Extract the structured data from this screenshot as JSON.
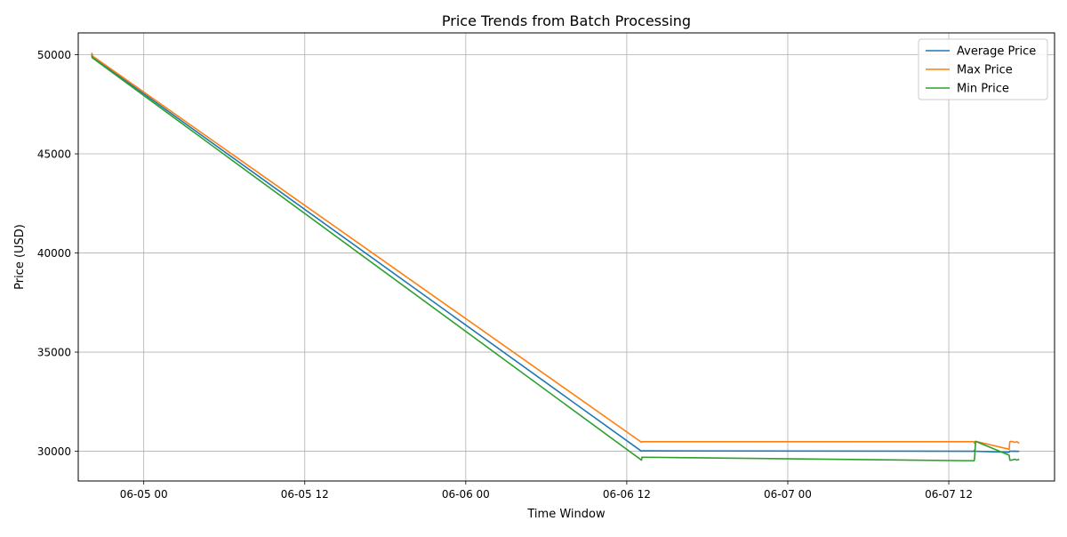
{
  "chart_data": {
    "type": "line",
    "title": "Price Trends from Batch Processing",
    "xlabel": "Time Window",
    "ylabel": "Price (USD)",
    "grid": true,
    "legend_position": "top-right",
    "x_range": [
      "2024-06-04 19:07",
      "2024-06-07 19:53"
    ],
    "ylim": [
      28500,
      51100
    ],
    "x_ticks": [
      {
        "t": "2024-06-05 00:00",
        "label": "06-05 00"
      },
      {
        "t": "2024-06-05 12:00",
        "label": "06-05 12"
      },
      {
        "t": "2024-06-06 00:00",
        "label": "06-06 00"
      },
      {
        "t": "2024-06-06 12:00",
        "label": "06-06 12"
      },
      {
        "t": "2024-06-07 00:00",
        "label": "06-07 00"
      },
      {
        "t": "2024-06-07 12:00",
        "label": "06-07 12"
      }
    ],
    "y_ticks": [
      30000,
      35000,
      40000,
      45000,
      50000
    ],
    "series": [
      {
        "name": "Average Price",
        "color": "#1f77b4",
        "points": [
          [
            "2024-06-04 20:08",
            50050
          ],
          [
            "2024-06-04 20:09",
            49900
          ],
          [
            "2024-06-06 13:06",
            30000
          ],
          [
            "2024-06-06 13:08",
            30020
          ],
          [
            "2024-06-07 13:53",
            30000
          ],
          [
            "2024-06-07 13:55",
            30050
          ],
          [
            "2024-06-07 14:00",
            30000
          ],
          [
            "2024-06-07 16:30",
            29950
          ],
          [
            "2024-06-07 16:33",
            30010
          ],
          [
            "2024-06-07 16:40",
            30000
          ],
          [
            "2024-06-07 16:55",
            30005
          ],
          [
            "2024-06-07 17:05",
            29995
          ],
          [
            "2024-06-07 17:15",
            30000
          ]
        ]
      },
      {
        "name": "Max Price",
        "color": "#ff7f0e",
        "points": [
          [
            "2024-06-04 20:08",
            50100
          ],
          [
            "2024-06-04 20:09",
            49950
          ],
          [
            "2024-06-06 13:06",
            30450
          ],
          [
            "2024-06-06 13:08",
            30480
          ],
          [
            "2024-06-07 13:53",
            30480
          ],
          [
            "2024-06-07 13:55",
            30400
          ],
          [
            "2024-06-07 14:00",
            30500
          ],
          [
            "2024-06-07 16:30",
            30100
          ],
          [
            "2024-06-07 16:33",
            30480
          ],
          [
            "2024-06-07 16:40",
            30500
          ],
          [
            "2024-06-07 16:55",
            30450
          ],
          [
            "2024-06-07 17:05",
            30480
          ],
          [
            "2024-06-07 17:15",
            30400
          ]
        ]
      },
      {
        "name": "Min Price",
        "color": "#2ca02c",
        "points": [
          [
            "2024-06-04 20:08",
            50000
          ],
          [
            "2024-06-04 20:09",
            49850
          ],
          [
            "2024-06-06 13:06",
            29550
          ],
          [
            "2024-06-06 13:08",
            29700
          ],
          [
            "2024-06-07 13:53",
            29520
          ],
          [
            "2024-06-07 13:55",
            29600
          ],
          [
            "2024-06-07 14:00",
            30500
          ],
          [
            "2024-06-07 16:30",
            29800
          ],
          [
            "2024-06-07 16:33",
            29550
          ],
          [
            "2024-06-07 16:40",
            29550
          ],
          [
            "2024-06-07 16:55",
            29600
          ],
          [
            "2024-06-07 17:05",
            29550
          ],
          [
            "2024-06-07 17:15",
            29600
          ]
        ]
      }
    ]
  }
}
